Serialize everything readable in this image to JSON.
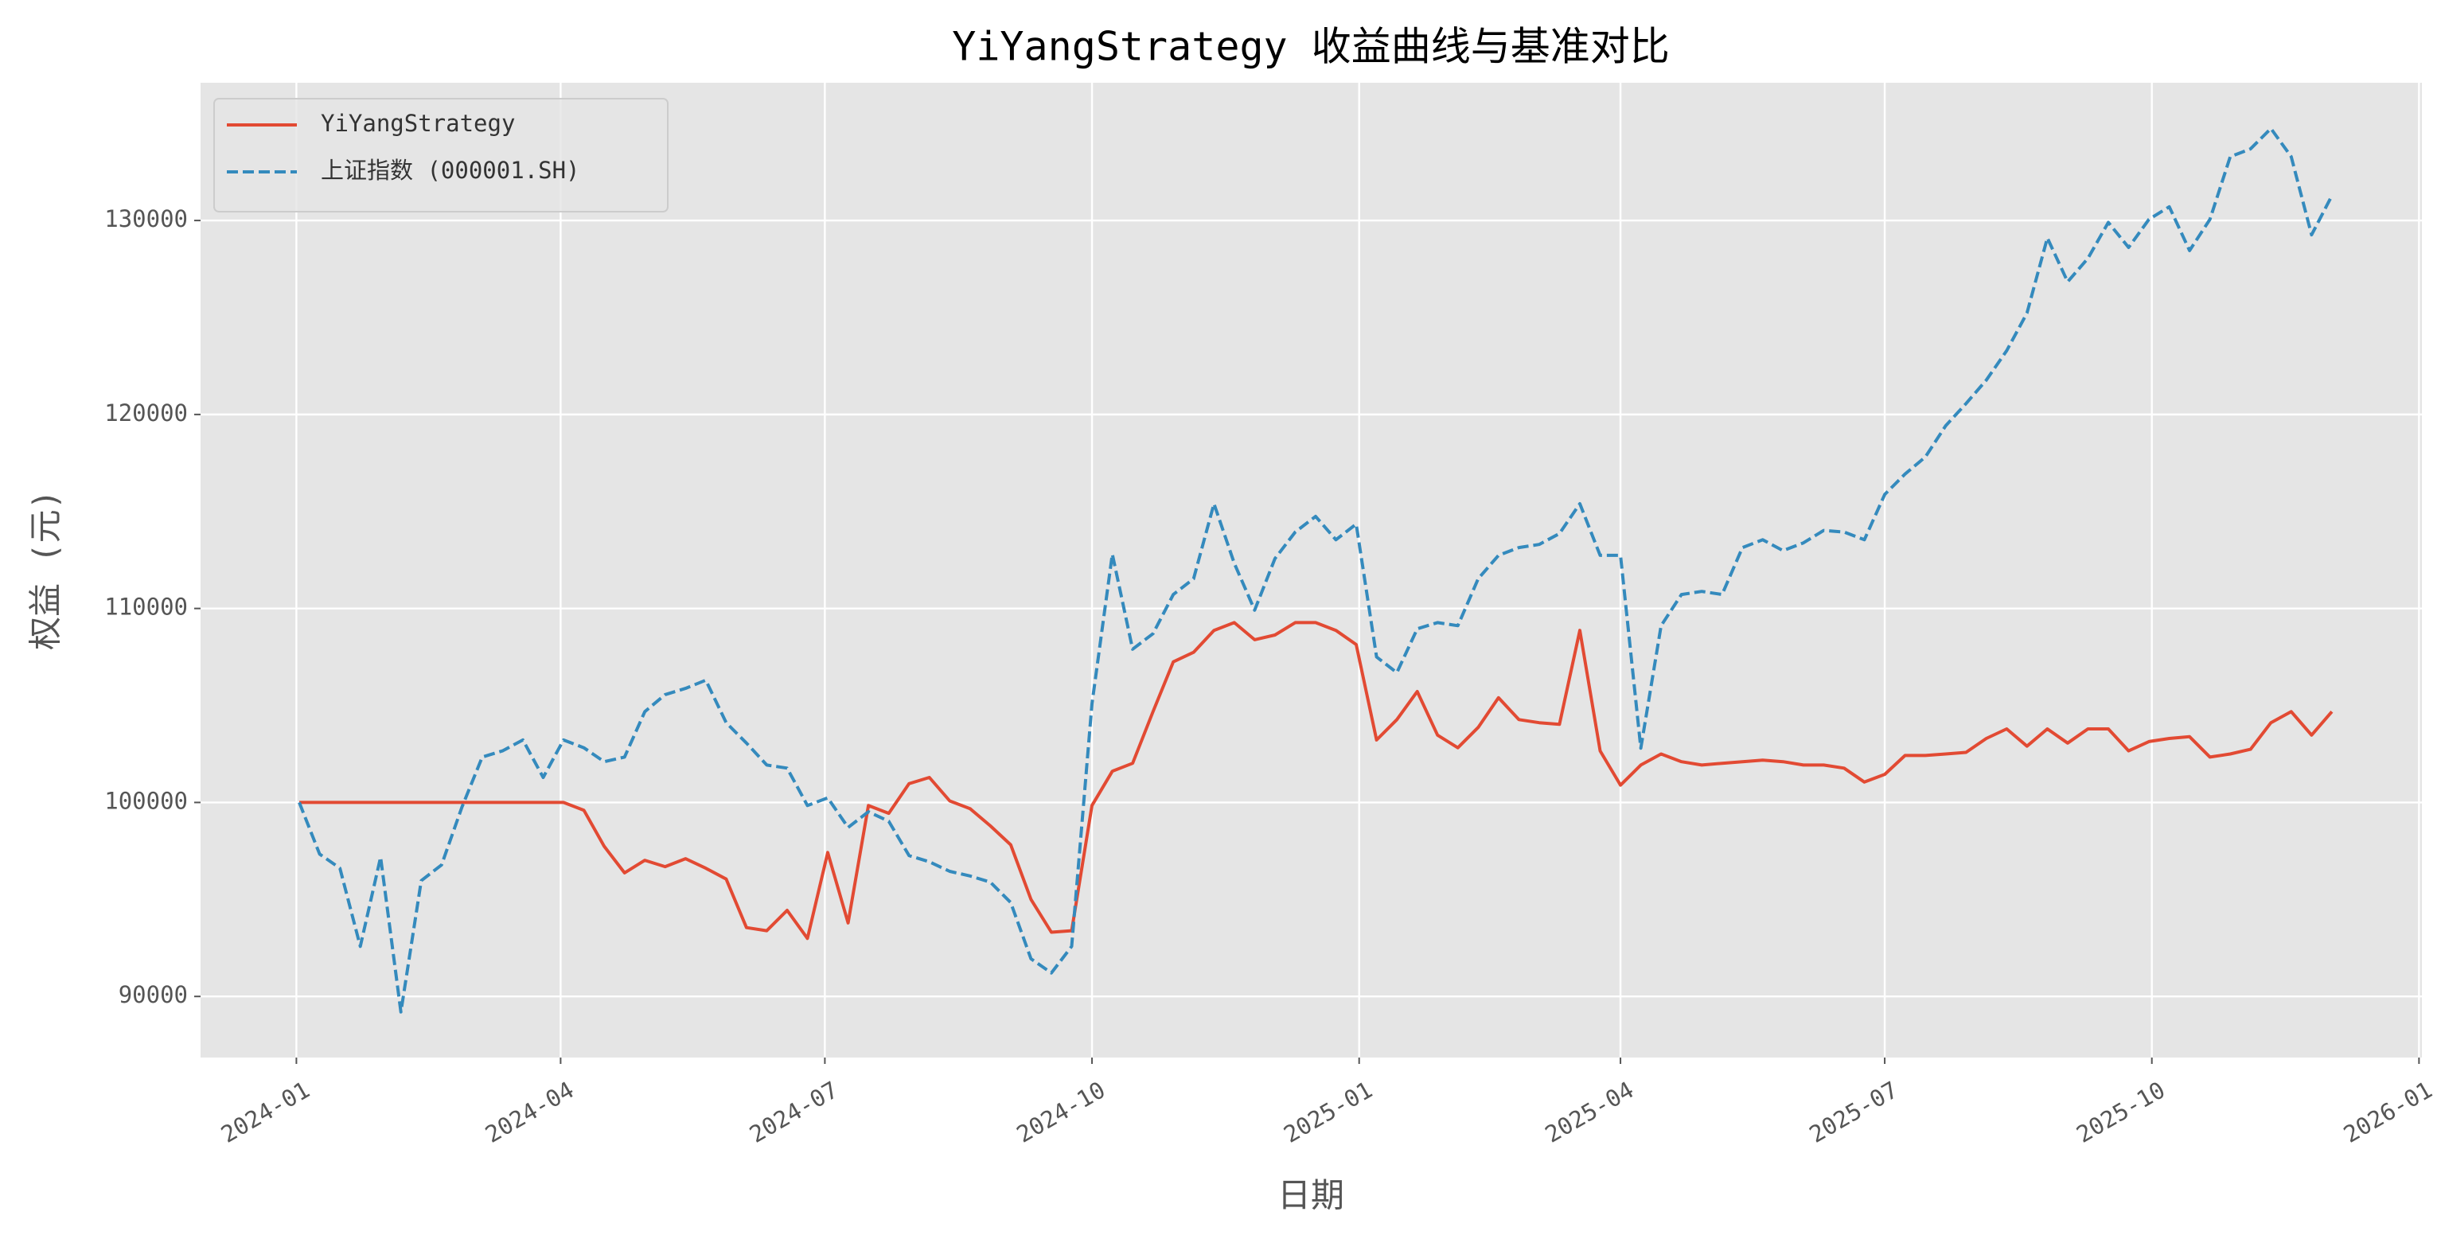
{
  "chart_data": {
    "type": "line",
    "title": "YiYangStrategy 收益曲线与基准对比",
    "xlabel": "日期",
    "ylabel": "权益 (元)",
    "x": [
      "2024-01-02",
      "2024-01-09",
      "2024-01-16",
      "2024-01-23",
      "2024-01-30",
      "2024-02-06",
      "2024-02-13",
      "2024-02-20",
      "2024-02-27",
      "2024-03-05",
      "2024-03-12",
      "2024-03-19",
      "2024-03-26",
      "2024-04-02",
      "2024-04-09",
      "2024-04-16",
      "2024-04-23",
      "2024-04-30",
      "2024-05-07",
      "2024-05-14",
      "2024-05-21",
      "2024-05-28",
      "2024-06-04",
      "2024-06-11",
      "2024-06-18",
      "2024-06-25",
      "2024-07-02",
      "2024-07-09",
      "2024-07-16",
      "2024-07-23",
      "2024-07-30",
      "2024-08-06",
      "2024-08-13",
      "2024-08-20",
      "2024-08-27",
      "2024-09-03",
      "2024-09-10",
      "2024-09-17",
      "2024-09-24",
      "2024-10-01",
      "2024-10-08",
      "2024-10-15",
      "2024-10-22",
      "2024-10-29",
      "2024-11-05",
      "2024-11-12",
      "2024-11-19",
      "2024-11-26",
      "2024-12-03",
      "2024-12-10",
      "2024-12-17",
      "2024-12-24",
      "2024-12-31",
      "2025-01-07",
      "2025-01-14",
      "2025-01-21",
      "2025-01-28",
      "2025-02-04",
      "2025-02-11",
      "2025-02-18",
      "2025-02-25",
      "2025-03-04",
      "2025-03-11",
      "2025-03-18",
      "2025-03-25",
      "2025-04-01",
      "2025-04-08",
      "2025-04-15",
      "2025-04-22",
      "2025-04-29",
      "2025-05-06",
      "2025-05-13",
      "2025-05-20",
      "2025-05-27",
      "2025-06-03",
      "2025-06-10",
      "2025-06-17",
      "2025-06-24",
      "2025-07-01",
      "2025-07-08",
      "2025-07-15",
      "2025-07-22",
      "2025-07-29",
      "2025-08-05",
      "2025-08-12",
      "2025-08-19",
      "2025-08-26",
      "2025-09-02",
      "2025-09-09",
      "2025-09-16",
      "2025-09-23",
      "2025-09-30",
      "2025-10-07",
      "2025-10-14",
      "2025-10-21",
      "2025-10-28",
      "2025-11-04",
      "2025-11-11",
      "2025-11-18",
      "2025-11-25",
      "2025-12-02"
    ],
    "series": [
      {
        "name": "YiYangStrategy",
        "color": "#E24A33",
        "dash": false,
        "values": [
          100000,
          100000,
          100000,
          100000,
          100000,
          100000,
          100000,
          100000,
          100000,
          100000,
          100000,
          100000,
          100000,
          100000,
          99600,
          97740,
          96370,
          97020,
          96690,
          97100,
          96610,
          96050,
          93550,
          93390,
          94440,
          92990,
          97420,
          93790,
          99840,
          99440,
          100970,
          101290,
          100080,
          99680,
          98790,
          97820,
          95000,
          93310,
          93390,
          99840,
          101610,
          102020,
          104680,
          107250,
          107740,
          108870,
          109270,
          108390,
          108630,
          109270,
          109270,
          108870,
          108140,
          103220,
          104270,
          105720,
          103470,
          102820,
          103870,
          105400,
          104270,
          104110,
          104030,
          108870,
          102660,
          100890,
          101930,
          102500,
          102100,
          101930,
          102020,
          102100,
          102180,
          102100,
          101930,
          101930,
          101770,
          101050,
          101450,
          102420,
          102420,
          102500,
          102580,
          103300,
          103790,
          102900,
          103790,
          103060,
          103790,
          103790,
          102660,
          103140,
          103300,
          103390,
          102340,
          102500,
          102740,
          104110,
          104680,
          103470,
          104680
        ]
      },
      {
        "name": "上证指数 (000001.SH)",
        "color": "#348ABD",
        "dash": true,
        "values": [
          100000,
          97340,
          96610,
          92580,
          97180,
          89200,
          95970,
          96780,
          99760,
          102340,
          102660,
          103220,
          101290,
          103220,
          102820,
          102100,
          102340,
          104680,
          105560,
          105880,
          106300,
          104110,
          103060,
          101930,
          101770,
          99840,
          100240,
          98710,
          99520,
          99030,
          97260,
          96940,
          96450,
          96210,
          95890,
          94840,
          91940,
          91210,
          92580,
          105080,
          112800,
          107900,
          108700,
          110720,
          111530,
          115400,
          112330,
          109910,
          112570,
          113940,
          114750,
          113540,
          114350,
          107500,
          106690,
          108950,
          109270,
          109110,
          111530,
          112740,
          113140,
          113300,
          113860,
          115400,
          112740,
          112740,
          102800,
          109110,
          110720,
          110880,
          110720,
          113140,
          113540,
          112980,
          113380,
          114020,
          113940,
          113540,
          115880,
          116930,
          117810,
          119420,
          120560,
          121770,
          123290,
          125230,
          129100,
          126840,
          128050,
          129900,
          128610,
          130060,
          130710,
          128450,
          130060,
          133290,
          133690,
          134740,
          133290,
          129260,
          131280
        ]
      }
    ],
    "xlim": [
      "2023-11-29",
      "2026-01-02"
    ],
    "xticks": [
      "2024-01",
      "2024-04",
      "2024-07",
      "2024-10",
      "2025-01",
      "2025-04",
      "2025-07",
      "2025-10",
      "2026-01"
    ],
    "ylim": [
      86850,
      137100
    ],
    "yticks": [
      90000,
      100000,
      110000,
      120000,
      130000
    ],
    "grid": true,
    "legend": "upper left"
  }
}
